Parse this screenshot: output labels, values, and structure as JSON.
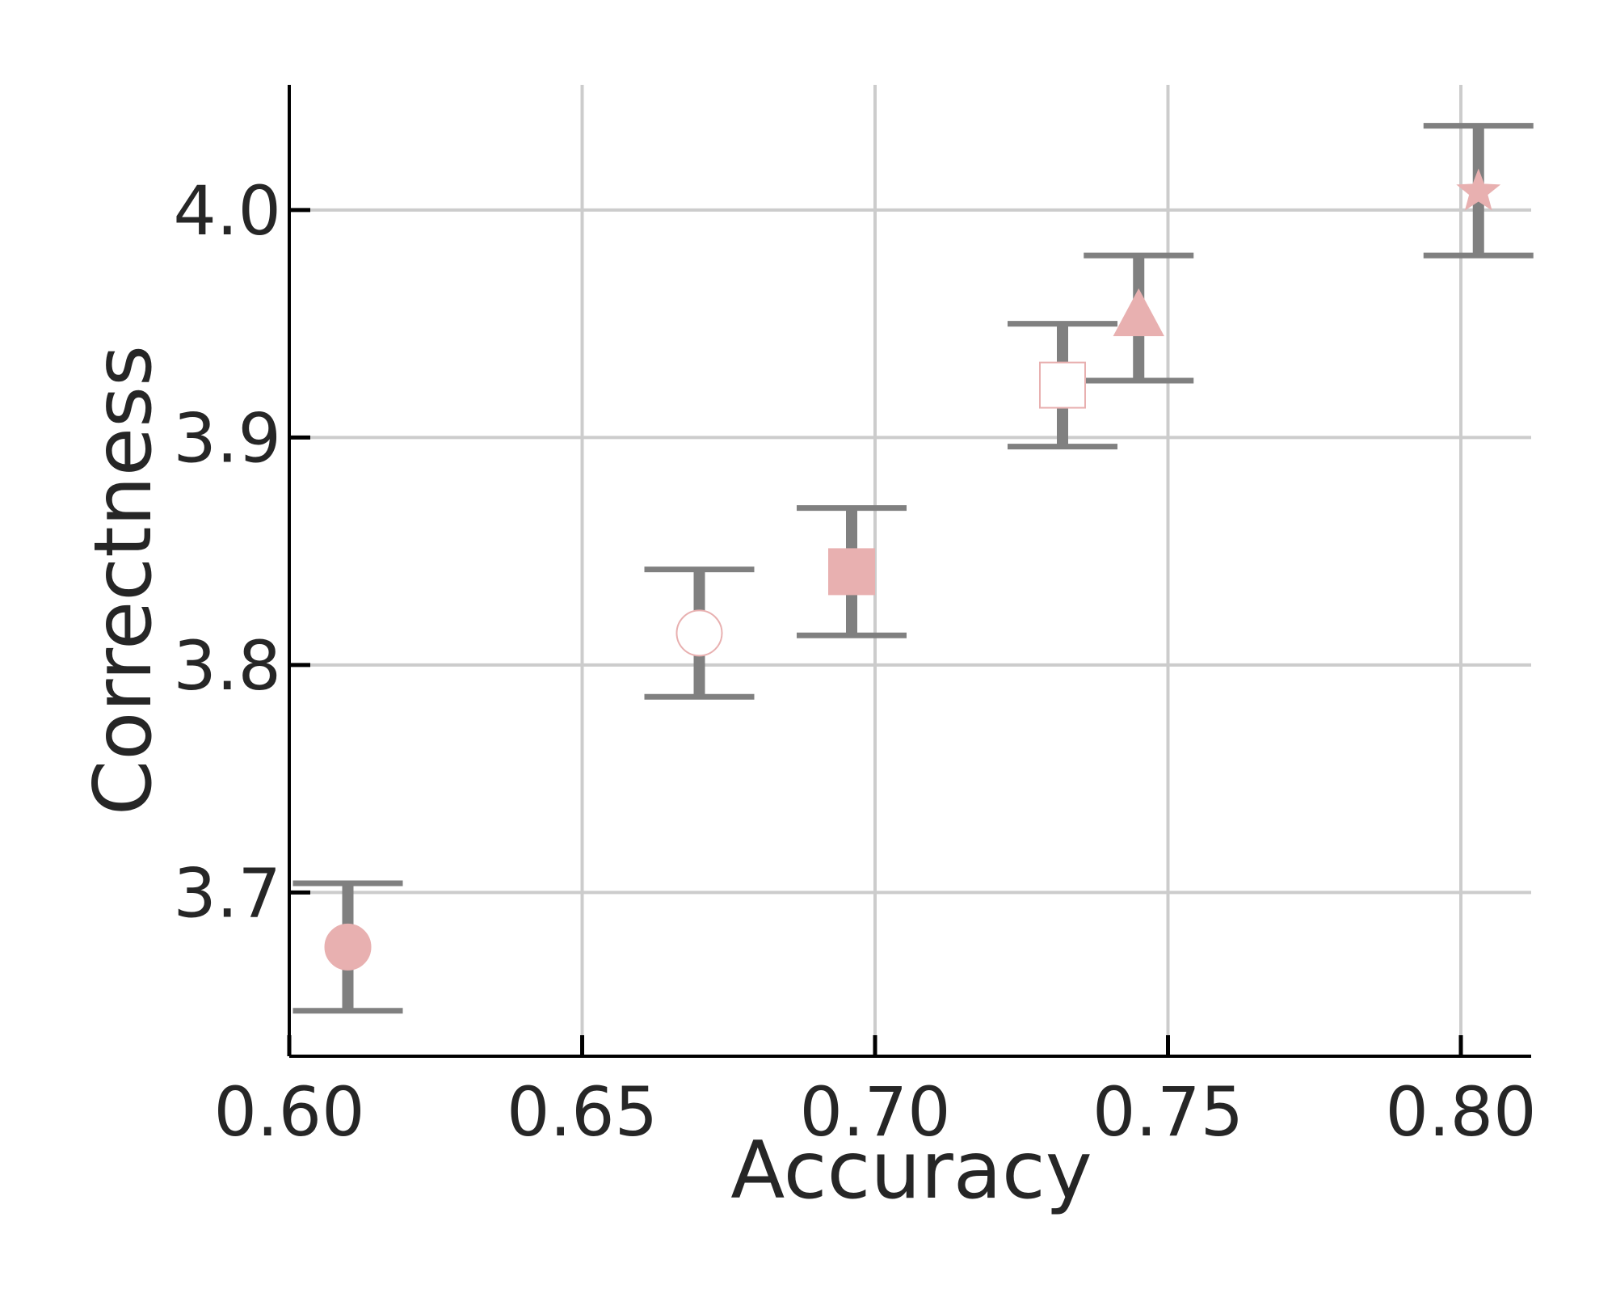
{
  "chart_data": {
    "type": "scatter",
    "title": "",
    "xlabel": "Accuracy",
    "ylabel": "Correctness",
    "xlim": [
      0.6,
      0.812
    ],
    "ylim": [
      3.628,
      4.055
    ],
    "xticks": [
      0.6,
      0.65,
      0.7,
      0.75,
      0.8
    ],
    "xtick_labels": [
      "0.60",
      "0.65",
      "0.70",
      "0.75",
      "0.80"
    ],
    "yticks": [
      3.7,
      3.8,
      3.9,
      4.0
    ],
    "ytick_labels": [
      "3.7",
      "3.8",
      "3.9",
      "4.0"
    ],
    "grid": true,
    "legend": "none",
    "colors": {
      "marker": "#e8b0b0",
      "errorbar": "#808080",
      "grid": "#cccccc",
      "axis": "#000000"
    },
    "points": [
      {
        "x": 0.61,
        "y": 3.676,
        "err_low": 3.648,
        "err_high": 3.704,
        "marker": "circle",
        "filled": true
      },
      {
        "x": 0.67,
        "y": 3.814,
        "err_low": 3.786,
        "err_high": 3.842,
        "marker": "circle",
        "filled": false
      },
      {
        "x": 0.696,
        "y": 3.841,
        "err_low": 3.813,
        "err_high": 3.869,
        "marker": "square",
        "filled": true
      },
      {
        "x": 0.732,
        "y": 3.923,
        "err_low": 3.896,
        "err_high": 3.95,
        "marker": "square",
        "filled": false
      },
      {
        "x": 0.745,
        "y": 3.952,
        "err_low": 3.925,
        "err_high": 3.98,
        "marker": "triangle",
        "filled": true
      },
      {
        "x": 0.803,
        "y": 4.008,
        "err_low": 3.98,
        "err_high": 4.037,
        "marker": "star",
        "filled": true
      }
    ]
  }
}
